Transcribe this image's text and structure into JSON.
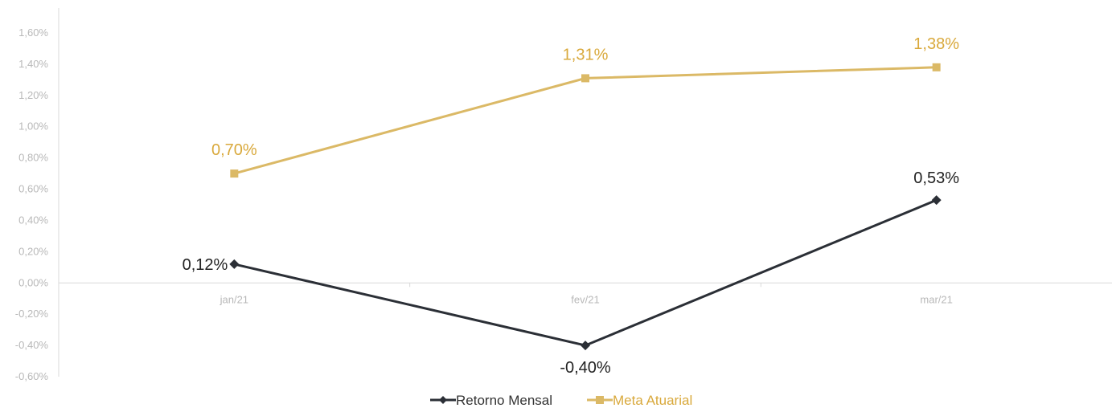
{
  "chart_data": {
    "type": "line",
    "categories": [
      "jan/21",
      "fev/21",
      "mar/21"
    ],
    "series": [
      {
        "name": "Retorno Mensal",
        "values": [
          0.12,
          -0.4,
          0.53
        ],
        "labels": [
          "0,12%",
          "-0,40%",
          "0,53%"
        ],
        "color": "#2b2f36",
        "marker": "diamond"
      },
      {
        "name": "Meta Atuarial",
        "values": [
          0.7,
          1.31,
          1.38
        ],
        "labels": [
          "0,70%",
          "1,31%",
          "1,38%"
        ],
        "color": "#dbb966",
        "marker": "square"
      }
    ],
    "yticks": [
      "1,60%",
      "1,40%",
      "1,20%",
      "1,00%",
      "0,80%",
      "0,60%",
      "0,40%",
      "0,20%",
      "0,00%",
      "-0,20%",
      "-0,40%",
      "-0,60%"
    ],
    "ylim": [
      -0.6,
      1.6
    ],
    "legend_position": "bottom",
    "grid": false
  },
  "colors": {
    "axis": "#d9d9d9",
    "tick_text": "#b8b8b8",
    "label_series_1": "#222222",
    "label_series_2": "#d9a93c"
  }
}
